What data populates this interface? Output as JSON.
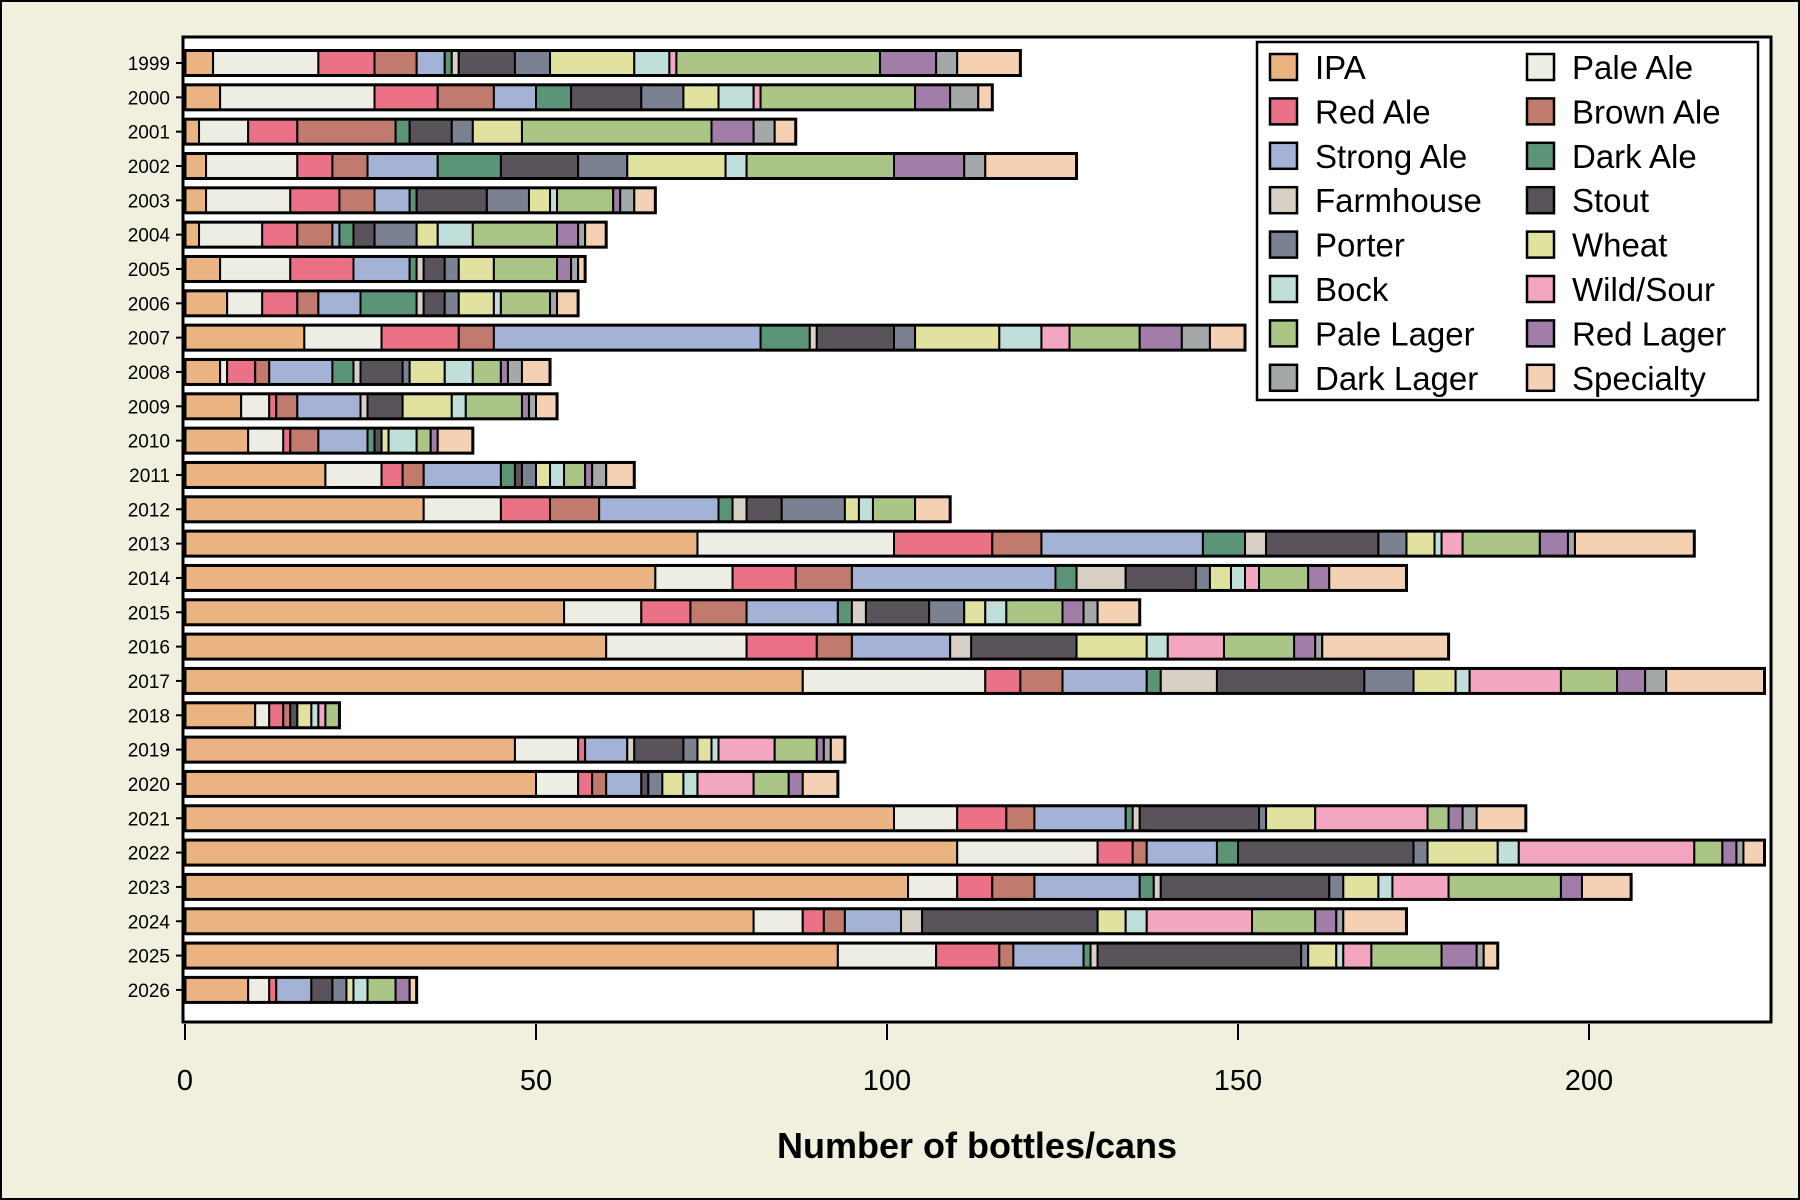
{
  "chart_data": {
    "type": "bar",
    "orientation": "horizontal",
    "stacked": true,
    "title": "",
    "xlabel": "Number of bottles/cans",
    "ylabel": "",
    "xlim": [
      0,
      225
    ],
    "xticks": [
      0,
      50,
      100,
      150,
      200
    ],
    "grid": false,
    "legend_position": "top-right",
    "background_color": "#F1F0DE",
    "categories": [
      "1999",
      "2000",
      "2001",
      "2002",
      "2003",
      "2004",
      "2005",
      "2006",
      "2007",
      "2008",
      "2009",
      "2010",
      "2011",
      "2012",
      "2013",
      "2014",
      "2015",
      "2016",
      "2017",
      "2018",
      "2019",
      "2020",
      "2021",
      "2022",
      "2023",
      "2024",
      "2025",
      "2026"
    ],
    "series": [
      {
        "name": "IPA",
        "color": "#E9B482",
        "values": [
          4,
          5,
          2,
          3,
          3,
          2,
          5,
          6,
          17,
          5,
          8,
          9,
          20,
          34,
          73,
          67,
          54,
          60,
          88,
          10,
          47,
          50,
          101,
          110,
          103,
          81,
          93,
          9
        ]
      },
      {
        "name": "Pale Ale",
        "color": "#EDEDE4",
        "values": [
          15,
          22,
          7,
          13,
          12,
          9,
          10,
          5,
          11,
          1,
          4,
          5,
          8,
          11,
          28,
          11,
          11,
          20,
          26,
          2,
          9,
          6,
          9,
          20,
          7,
          7,
          14,
          3
        ]
      },
      {
        "name": "Red Ale",
        "color": "#EB7286",
        "values": [
          8,
          9,
          7,
          5,
          7,
          5,
          9,
          5,
          11,
          4,
          1,
          1,
          3,
          7,
          14,
          9,
          7,
          10,
          5,
          2,
          1,
          2,
          7,
          5,
          5,
          3,
          9,
          1
        ]
      },
      {
        "name": "Brown Ale",
        "color": "#C07A6E",
        "values": [
          6,
          8,
          14,
          5,
          5,
          5,
          0,
          3,
          5,
          2,
          3,
          4,
          3,
          7,
          7,
          8,
          8,
          5,
          6,
          1,
          0,
          2,
          4,
          2,
          6,
          3,
          2,
          0
        ]
      },
      {
        "name": "Strong Ale",
        "color": "#A4B3D5",
        "values": [
          4,
          6,
          0,
          10,
          5,
          1,
          8,
          6,
          38,
          9,
          9,
          7,
          11,
          17,
          23,
          29,
          13,
          14,
          12,
          0,
          6,
          5,
          13,
          10,
          15,
          8,
          10,
          5
        ]
      },
      {
        "name": "Dark Ale",
        "color": "#5C9478",
        "values": [
          1,
          5,
          2,
          9,
          1,
          2,
          1,
          8,
          7,
          3,
          0,
          1,
          2,
          2,
          6,
          3,
          2,
          0,
          2,
          0,
          0,
          0,
          1,
          3,
          2,
          0,
          1,
          0
        ]
      },
      {
        "name": "Farmhouse",
        "color": "#D9D0C5",
        "values": [
          1,
          0,
          0,
          0,
          0,
          0,
          1,
          1,
          1,
          1,
          1,
          0,
          0,
          2,
          3,
          7,
          2,
          3,
          8,
          0,
          1,
          0,
          1,
          0,
          1,
          3,
          1,
          0
        ]
      },
      {
        "name": "Stout",
        "color": "#5A535B",
        "values": [
          8,
          10,
          6,
          11,
          10,
          3,
          3,
          3,
          11,
          6,
          5,
          1,
          1,
          5,
          16,
          10,
          9,
          15,
          21,
          1,
          7,
          1,
          17,
          25,
          24,
          25,
          29,
          3
        ]
      },
      {
        "name": "Porter",
        "color": "#7A8190",
        "values": [
          5,
          6,
          3,
          7,
          6,
          6,
          2,
          2,
          3,
          1,
          0,
          0,
          2,
          9,
          4,
          2,
          5,
          0,
          7,
          0,
          2,
          2,
          1,
          2,
          2,
          0,
          1,
          2
        ]
      },
      {
        "name": "Wheat",
        "color": "#E2E2A0",
        "values": [
          12,
          5,
          7,
          14,
          3,
          3,
          5,
          5,
          12,
          5,
          7,
          1,
          2,
          2,
          4,
          3,
          3,
          10,
          6,
          2,
          2,
          3,
          7,
          10,
          5,
          4,
          4,
          1
        ]
      },
      {
        "name": "Bock",
        "color": "#C0DFDA",
        "values": [
          5,
          5,
          0,
          3,
          1,
          5,
          0,
          1,
          6,
          4,
          2,
          4,
          2,
          2,
          1,
          2,
          3,
          3,
          2,
          1,
          1,
          2,
          0,
          3,
          2,
          3,
          1,
          2
        ]
      },
      {
        "name": "Wild/Sour",
        "color": "#F3A6C0",
        "values": [
          1,
          1,
          0,
          0,
          0,
          0,
          0,
          0,
          4,
          0,
          0,
          0,
          0,
          0,
          3,
          2,
          0,
          8,
          13,
          1,
          8,
          8,
          16,
          25,
          8,
          15,
          4,
          0
        ]
      },
      {
        "name": "Pale Lager",
        "color": "#ABC586",
        "values": [
          29,
          22,
          27,
          21,
          8,
          12,
          9,
          7,
          10,
          4,
          8,
          2,
          3,
          6,
          11,
          7,
          8,
          10,
          8,
          2,
          6,
          5,
          3,
          4,
          16,
          9,
          10,
          4
        ]
      },
      {
        "name": "Red Lager",
        "color": "#A17EA8",
        "values": [
          8,
          5,
          6,
          10,
          1,
          3,
          2,
          0,
          6,
          1,
          1,
          1,
          1,
          0,
          4,
          3,
          3,
          3,
          4,
          0,
          1,
          2,
          2,
          2,
          3,
          3,
          5,
          2
        ]
      },
      {
        "name": "Dark Lager",
        "color": "#A5A8A9",
        "values": [
          3,
          4,
          3,
          3,
          2,
          1,
          1,
          1,
          4,
          2,
          1,
          0,
          2,
          0,
          1,
          0,
          2,
          1,
          3,
          0,
          1,
          0,
          2,
          1,
          0,
          1,
          1,
          0
        ]
      },
      {
        "name": "Specialty",
        "color": "#F4D1B3",
        "values": [
          9,
          2,
          3,
          13,
          3,
          3,
          1,
          3,
          5,
          4,
          3,
          5,
          4,
          5,
          17,
          11,
          6,
          18,
          14,
          0,
          2,
          5,
          7,
          3,
          7,
          9,
          2,
          1
        ]
      }
    ]
  }
}
